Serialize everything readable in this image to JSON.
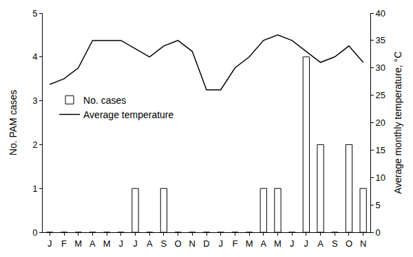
{
  "chart_data": {
    "type": "bar",
    "categories": [
      "J",
      "F",
      "M",
      "A",
      "M",
      "J",
      "J",
      "A",
      "S",
      "O",
      "N",
      "D",
      "J",
      "F",
      "M",
      "A",
      "M",
      "J",
      "J",
      "A",
      "S",
      "O",
      "N"
    ],
    "ylabel": "No. PAM cases",
    "y2label": "Average monthly temperature, °C",
    "series": [
      {
        "name": "No. cases",
        "type": "bar",
        "color": "#000000",
        "values": [
          0,
          0,
          0,
          0,
          0,
          0,
          1,
          0,
          1,
          0,
          0,
          0,
          0,
          0,
          0,
          1,
          1,
          0,
          4,
          2,
          0,
          2,
          1
        ]
      },
      {
        "name": "Average temperature",
        "type": "line",
        "color": "#000000",
        "axis": "y2",
        "values": [
          27,
          28,
          30,
          35,
          35,
          35,
          33.5,
          32,
          34,
          35,
          33,
          26,
          26,
          30,
          32,
          35,
          36,
          35,
          33,
          31,
          32,
          34,
          31
        ]
      }
    ],
    "ylim": [
      0,
      5
    ],
    "yticks": [
      0,
      1,
      2,
      3,
      4,
      5
    ],
    "y2lim": [
      0,
      40
    ],
    "y2ticks": [
      0,
      5,
      10,
      15,
      20,
      25,
      30,
      35,
      40
    ],
    "grid": false,
    "legend": "left"
  }
}
